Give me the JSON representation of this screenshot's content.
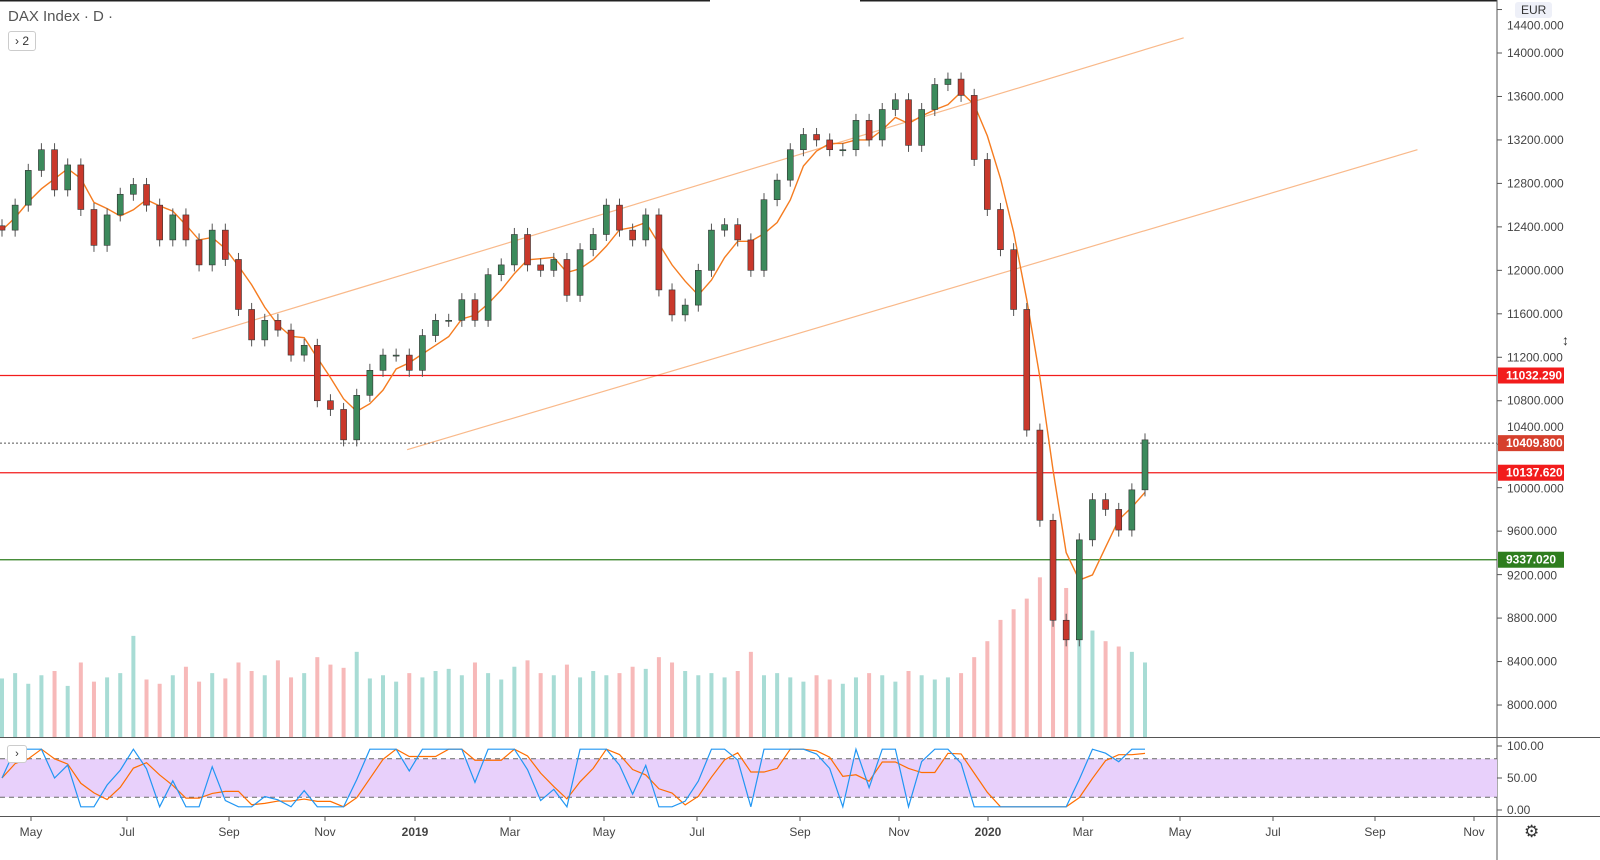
{
  "header": {
    "title": "DAX Index · D ·",
    "collapsed_count_label": "› 2",
    "currency": "EUR"
  },
  "chart_data": {
    "type": "candlestick",
    "symbol": "DAX Index",
    "interval": "D",
    "currency": "EUR",
    "closes": [
      12370,
      12600,
      12920,
      13110,
      12740,
      12970,
      12560,
      12230,
      12510,
      12700,
      12790,
      12600,
      12280,
      12510,
      12280,
      12050,
      12370,
      12100,
      11640,
      11360,
      11540,
      11450,
      11220,
      11310,
      10800,
      10720,
      10440,
      10850,
      11080,
      11220,
      11220,
      11080,
      11400,
      11540,
      11540,
      11730,
      11540,
      11960,
      12050,
      12330,
      12050,
      12000,
      12100,
      11770,
      12190,
      12330,
      12600,
      12370,
      12280,
      12510,
      11820,
      11590,
      11680,
      12000,
      12370,
      12420,
      12280,
      12000,
      12650,
      12830,
      13110,
      13250,
      13200,
      13110,
      13110,
      13380,
      13200,
      13480,
      13570,
      13150,
      13480,
      13710,
      13760,
      13610,
      13020,
      12560,
      12190,
      11640,
      10530,
      9700,
      8780,
      8600,
      9520,
      9890,
      9800,
      9610,
      9980,
      10440
    ],
    "volume_relative": [
      55,
      60,
      50,
      58,
      62,
      48,
      70,
      52,
      56,
      60,
      95,
      54,
      50,
      58,
      66,
      52,
      60,
      55,
      70,
      62,
      58,
      72,
      56,
      60,
      75,
      68,
      65,
      80,
      55,
      58,
      52,
      60,
      56,
      62,
      64,
      58,
      70,
      60,
      54,
      66,
      72,
      60,
      58,
      68,
      56,
      62,
      58,
      60,
      66,
      64,
      75,
      70,
      62,
      58,
      60,
      56,
      62,
      80,
      58,
      60,
      56,
      52,
      58,
      54,
      50,
      56,
      60,
      58,
      52,
      62,
      58,
      54,
      56,
      60,
      75,
      90,
      110,
      120,
      130,
      150,
      155,
      140,
      120,
      100,
      90,
      85,
      80,
      70
    ],
    "moving_average": {
      "color": "#f57c20"
    },
    "trendlines": [
      {
        "from": {
          "date": "2018-08-12",
          "price": 11370
        },
        "to": {
          "date": "2020-05-05",
          "price": 14140
        },
        "color": "#f9b98a"
      },
      {
        "from": {
          "date": "2018-12-27",
          "price": 10350
        },
        "to": {
          "date": "2020-10-01",
          "price": 13110
        },
        "color": "#f9b98a"
      }
    ],
    "horizontal_levels": [
      {
        "price": 11032.29,
        "label": "11032.290",
        "color": "#f21c1c",
        "style": "solid"
      },
      {
        "price": 10409.8,
        "label": "10409.800",
        "color": "#d6402d",
        "style": "dotted"
      },
      {
        "price": 10137.62,
        "label": "10137.620",
        "color": "#f21c1c",
        "style": "solid"
      },
      {
        "price": 9337.02,
        "label": "9337.020",
        "color": "#2e7d1e",
        "style": "solid"
      }
    ],
    "price_axis": {
      "ticks": [
        "14400.000",
        "14000.000",
        "13600.000",
        "13200.000",
        "12800.000",
        "12400.000",
        "12000.000",
        "11600.000",
        "11200.000",
        "10800.000",
        "10400.000",
        "10000.000",
        "9600.000",
        "9200.000",
        "8800.000",
        "8400.000",
        "8000.000"
      ],
      "range": [
        7800,
        14400
      ]
    },
    "time_axis": {
      "ticks": [
        "May",
        "Jul",
        "Sep",
        "Nov",
        "2019",
        "Mar",
        "May",
        "Jul",
        "Sep",
        "Nov",
        "2020",
        "Mar",
        "May",
        "Jul",
        "Sep",
        "Nov"
      ]
    },
    "stochastic": {
      "ticks": [
        "100.00",
        "50.00",
        "0.00"
      ],
      "upper_band": 80,
      "lower_band": 20,
      "k_color": "#2196f3",
      "d_color": "#ff6d00",
      "band_fill": "#e8d0fb"
    },
    "colors": {
      "up": "#3c8a5c",
      "down": "#c9382b",
      "volume_up": "#a8dcd5",
      "volume_down": "#f7b9b9"
    }
  },
  "icons": {
    "settings": "gear-icon",
    "cursor": "resize-cursor-icon"
  }
}
